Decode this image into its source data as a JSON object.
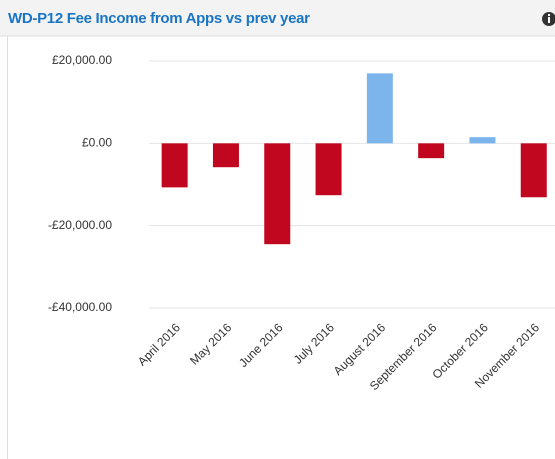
{
  "chart_data": {
    "type": "bar",
    "title": "WD-P12 Fee Income from Apps vs prev year",
    "categories": [
      "April 2016",
      "May 2016",
      "June 2016",
      "July 2016",
      "August 2016",
      "September 2016",
      "October 2016",
      "November 2016"
    ],
    "values": [
      -10700,
      -5800,
      -24500,
      -12600,
      17000,
      -3600,
      1500,
      -13100
    ],
    "color": "#7cb5ec",
    "negative_color": "#c1071f",
    "ylim": [
      -40000,
      20000
    ],
    "yticks": [
      {
        "value": -40000,
        "label": "-£40,000.00"
      },
      {
        "value": -20000,
        "label": "-£20,000.00"
      },
      {
        "value": 0,
        "label": "£0.00"
      },
      {
        "value": 20000,
        "label": "£20,000.00"
      }
    ],
    "grid": true
  }
}
